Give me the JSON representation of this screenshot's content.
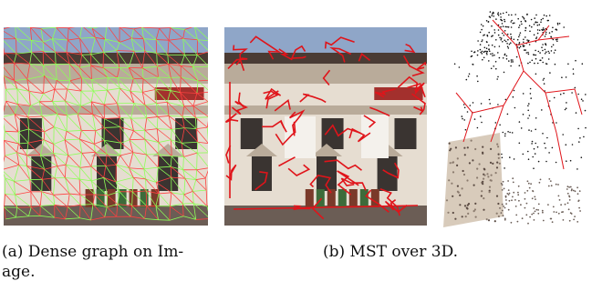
{
  "figure": {
    "subfigures": [
      {
        "id": "a",
        "caption": "(a)  Dense graph on Im-\nage."
      },
      {
        "id": "b",
        "caption": "(b)  MST over 3D."
      }
    ]
  },
  "colors": {
    "sky": "#8fa6c8",
    "facade_light": "#e6ddd1",
    "facade_mid": "#b9ab9a",
    "stone_dark": "#4a3b34",
    "window_dark": "#3a3431",
    "sign_red": "#a3302d",
    "graph_green": "#8dff57",
    "graph_red": "#ff4040",
    "mst_red": "#e0141a",
    "point_black": "#111111"
  }
}
